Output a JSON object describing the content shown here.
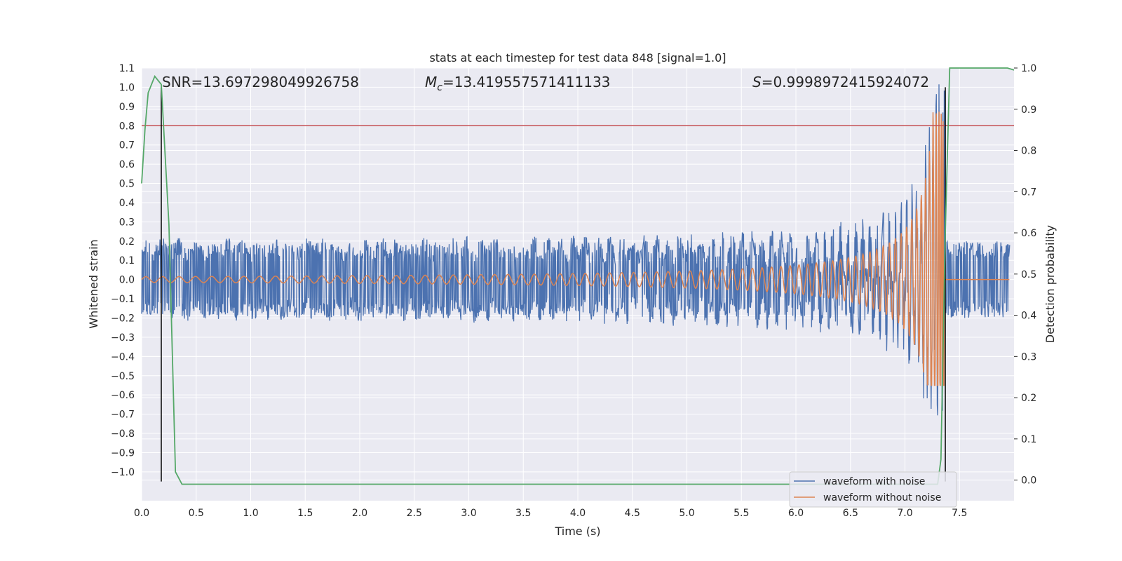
{
  "chart_data": {
    "type": "line",
    "title": "stats at each timestep for test data 848 [signal=1.0]",
    "xlabel": "Time (s)",
    "ylabel": "Whitened strain",
    "y2label": "Detection probability",
    "xlim": [
      0.0,
      8.0
    ],
    "ylim": [
      -1.15,
      1.1
    ],
    "y2lim": [
      -0.05,
      1.0
    ],
    "x_ticks": [
      "0.0",
      "0.5",
      "1.0",
      "1.5",
      "2.0",
      "2.5",
      "3.0",
      "3.5",
      "4.0",
      "4.5",
      "5.0",
      "5.5",
      "6.0",
      "6.5",
      "7.0",
      "7.5"
    ],
    "y_ticks": [
      "1.1",
      "1.0",
      "0.9",
      "0.8",
      "0.7",
      "0.6",
      "0.5",
      "0.4",
      "0.3",
      "0.2",
      "0.1",
      "0.0",
      "−0.1",
      "−0.2",
      "−0.3",
      "−0.4",
      "−0.5",
      "−0.6",
      "−0.7",
      "−0.8",
      "−0.9",
      "−1.0"
    ],
    "y2_ticks": [
      "0.0",
      "0.1",
      "0.2",
      "0.3",
      "0.4",
      "0.5",
      "0.6",
      "0.7",
      "0.8",
      "0.9",
      "1.0"
    ],
    "grid": true,
    "legend_position": "bottom-right",
    "annotations": {
      "snr": "SNR=13.697298049926758",
      "mc_symbol": "M",
      "mc_sub": "c",
      "mc_value": "=13.419557571411133",
      "s_symbol": "S",
      "s_value": "=0.9998972415924072"
    },
    "threshold_line": {
      "y": 0.8,
      "color": "#c44e52"
    },
    "vertical_lines": [
      0.18,
      7.37
    ],
    "series": [
      {
        "name": "waveform with noise",
        "color": "#4c72b0",
        "noise_amplitude": 0.2,
        "peak_time": 7.36,
        "peak_value": 0.98,
        "trough_value": -0.68
      },
      {
        "name": "waveform without noise",
        "color": "#dd8452",
        "start_amplitude": 0.015,
        "peak_time": 7.36,
        "peak_value": 0.88,
        "trough_value": -0.55,
        "post_merger_value": 0.0
      },
      {
        "name": "detection probability",
        "color": "#55a868",
        "axis": "right",
        "x": [
          0.0,
          0.03,
          0.06,
          0.12,
          0.18,
          0.25,
          0.31,
          0.37,
          1.0,
          2.0,
          3.0,
          4.0,
          5.0,
          6.0,
          7.0,
          7.3,
          7.33,
          7.37,
          7.41,
          7.45,
          7.6,
          7.8,
          7.88,
          7.94,
          8.0
        ],
        "y": [
          0.72,
          0.85,
          0.94,
          0.98,
          0.96,
          0.62,
          0.02,
          -0.01,
          -0.01,
          -0.01,
          -0.01,
          -0.01,
          -0.01,
          -0.01,
          -0.01,
          -0.01,
          0.05,
          0.6,
          1.0,
          1.0,
          1.0,
          1.0,
          1.0,
          1.0,
          0.995
        ]
      }
    ]
  }
}
